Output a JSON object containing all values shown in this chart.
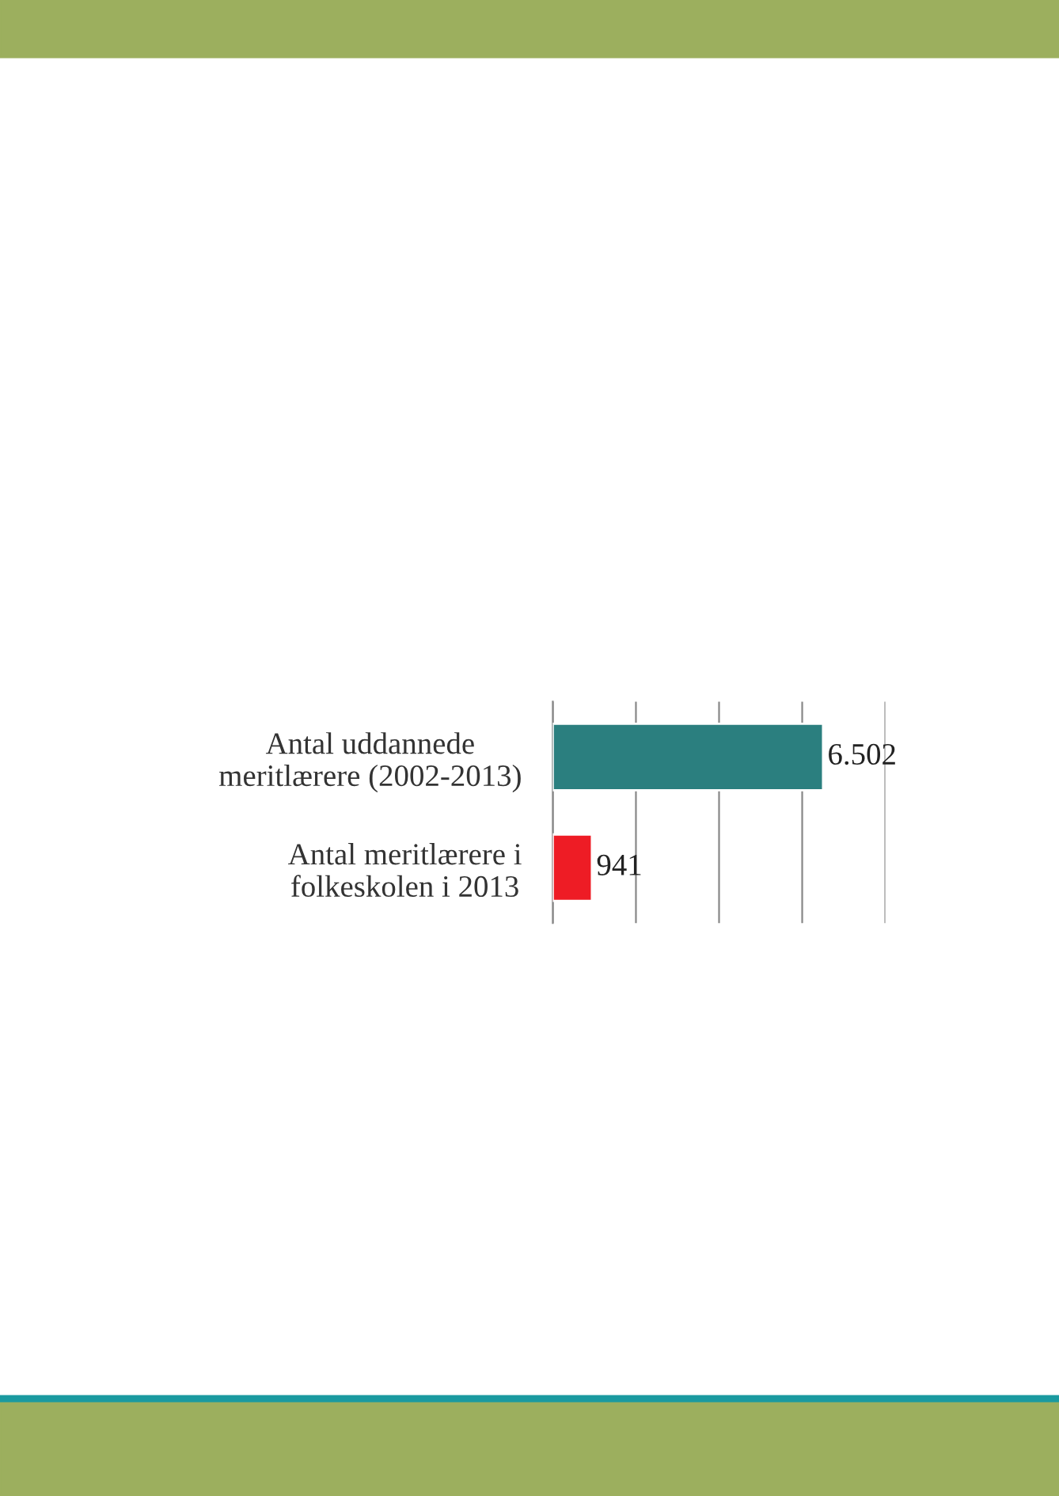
{
  "chart_data": {
    "type": "bar",
    "orientation": "horizontal",
    "categories": [
      "Antal uddannede\nmeritlærere (2002-2013)",
      "Antal meritlærere i\nfolkeskolen i 2013"
    ],
    "values": [
      6502,
      941
    ],
    "colors": [
      "#2b7f7f",
      "#ee1c25"
    ],
    "value_labels": [
      "6.502",
      "941"
    ],
    "xlim": [
      0,
      8000
    ],
    "xticks": [
      {
        "value": 0,
        "label": null
      },
      {
        "value": 2000,
        "label": null
      },
      {
        "value": 4000,
        "label": null
      },
      {
        "value": 6000,
        "label": null
      },
      {
        "value": 8000,
        "label": null
      }
    ],
    "tick_labels": "y",
    "grid": "x",
    "legend": false
  }
}
